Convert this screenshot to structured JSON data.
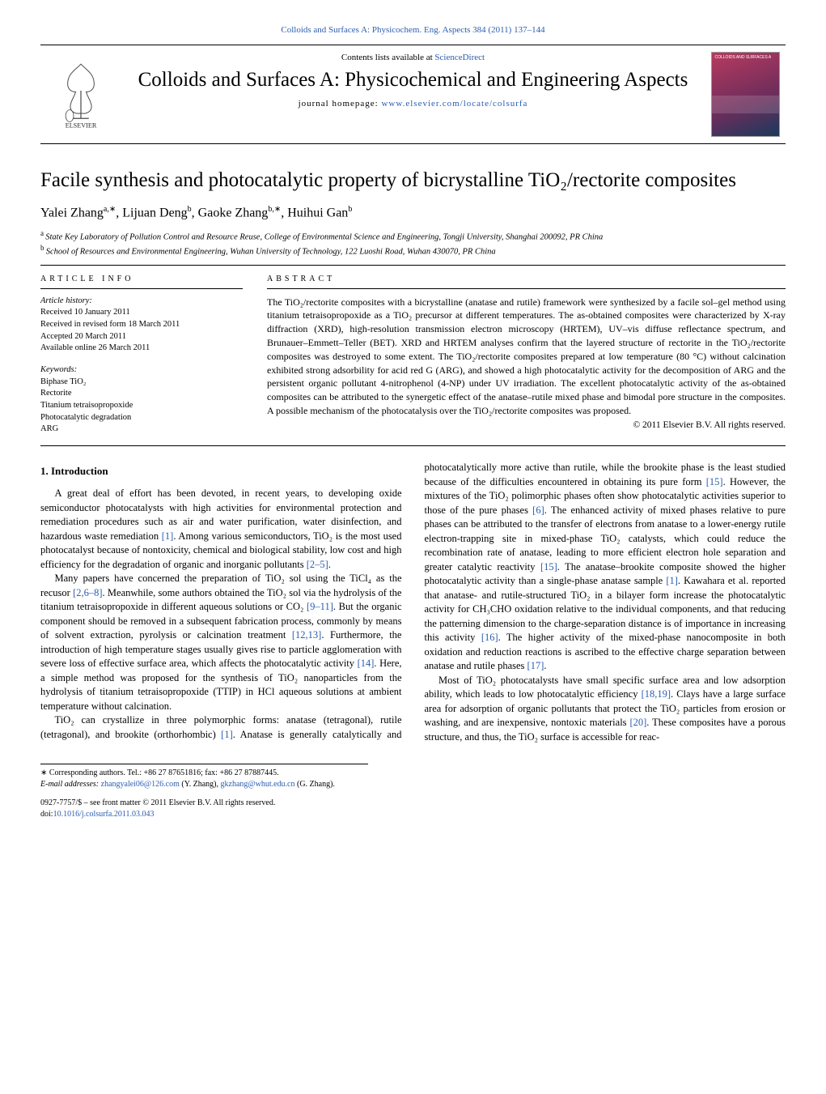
{
  "topCitation": {
    "journalLink": "Colloids and Surfaces A: Physicochem. Eng. Aspects 384 (2011) 137–144",
    "linkColor": "#2a5db0"
  },
  "header": {
    "contentsListsPrefix": "Contents lists available at ",
    "contentsListsLink": "ScienceDirect",
    "journalName": "Colloids and Surfaces A: Physicochemical and Engineering Aspects",
    "homepagePrefix": "journal homepage: ",
    "homepageLink": "www.elsevier.com/locate/colsurfa",
    "publisherLogoAlt": "ELSEVIER",
    "coverLabel": "COLLOIDS AND SURFACES A"
  },
  "article": {
    "title": "Facile synthesis and photocatalytic property of bicrystalline TiO₂/rectorite composites",
    "authorsHtml": "Yalei Zhang",
    "authors": [
      {
        "name": "Yalei Zhang",
        "marks": "a,∗"
      },
      {
        "name": "Lijuan Deng",
        "marks": "b"
      },
      {
        "name": "Gaoke Zhang",
        "marks": "b,∗"
      },
      {
        "name": "Huihui Gan",
        "marks": "b"
      }
    ],
    "affiliations": [
      {
        "mark": "a",
        "text": "State Key Laboratory of Pollution Control and Resource Reuse, College of Environmental Science and Engineering, Tongji University, Shanghai 200092, PR China"
      },
      {
        "mark": "b",
        "text": "School of Resources and Environmental Engineering, Wuhan University of Technology, 122 Luoshi Road, Wuhan 430070, PR China"
      }
    ]
  },
  "articleInfo": {
    "label": "ARTICLE INFO",
    "historyHead": "Article history:",
    "history": [
      "Received 10 January 2011",
      "Received in revised form 18 March 2011",
      "Accepted 20 March 2011",
      "Available online 26 March 2011"
    ],
    "keywordsHead": "Keywords:",
    "keywords": [
      "Biphase TiO₂",
      "Rectorite",
      "Titanium tetraisopropoxide",
      "Photocatalytic degradation",
      "ARG"
    ]
  },
  "abstract": {
    "label": "ABSTRACT",
    "text": "The TiO₂/rectorite composites with a bicrystalline (anatase and rutile) framework were synthesized by a facile sol–gel method using titanium tetraisopropoxide as a TiO₂ precursor at different temperatures. The as-obtained composites were characterized by X-ray diffraction (XRD), high-resolution transmission electron microscopy (HRTEM), UV–vis diffuse reflectance spectrum, and Brunauer–Emmett–Teller (BET). XRD and HRTEM analyses confirm that the layered structure of rectorite in the TiO₂/rectorite composites was destroyed to some extent. The TiO₂/rectorite composites prepared at low temperature (80 °C) without calcination exhibited strong adsorbility for acid red G (ARG), and showed a high photocatalytic activity for the decomposition of ARG and the persistent organic pollutant 4-nitrophenol (4-NP) under UV irradiation. The excellent photocatalytic activity of the as-obtained composites can be attributed to the synergetic effect of the anatase–rutile mixed phase and bimodal pore structure in the composites. A possible mechanism of the photocatalysis over the TiO₂/rectorite composites was proposed.",
    "copyright": "© 2011 Elsevier B.V. All rights reserved."
  },
  "sections": {
    "introHead": "1. Introduction",
    "p1a": "A great deal of effort has been devoted, in recent years, to developing oxide semiconductor photocatalysts with high activities for environmental protection and remediation procedures such as air and water purification, water disinfection, and hazardous waste remediation ",
    "p1ref1": "[1]",
    "p1b": ". Among various semiconductors, TiO₂ is the most used photocatalyst because of nontoxicity, chemical and biological stability, low cost and high efficiency for the degradation of organic and inorganic pollutants ",
    "p1ref2": "[2–5]",
    "p1c": ".",
    "p2a": "Many papers have concerned the preparation of TiO₂ sol using the TiCl₄ as the recusor ",
    "p2ref1": "[2,6–8]",
    "p2b": ". Meanwhile, some authors obtained the TiO₂ sol via the hydrolysis of the titanium tetraisopropoxide in different aqueous solutions or CO₂ ",
    "p2ref2": "[9–11]",
    "p2c": ". But the organic component should be removed in a subsequent fabrication process, commonly by means of solvent extraction, pyrolysis or calcination treatment ",
    "p2ref3": "[12,13]",
    "p2d": ". Furthermore, the introduction of high temperature stages usually gives rise to particle agglomeration with severe loss of effective surface area, which affects the photocatalytic activity ",
    "p2ref4": "[14]",
    "p2e": ". Here, a simple method was proposed for the synthesis of TiO₂ nanoparticles from the hydrolysis of titanium tetraisopropoxide (TTIP) in HCl aqueous solutions at ambient temperature without calcination.",
    "p3a": "TiO₂ can crystallize in three polymorphic forms: anatase (tetragonal), rutile (tetragonal), and brookite (orthorhombic) ",
    "p3ref1": "[1]",
    "p3b": ". Anatase is generally catalytically and photocatalytically more active than rutile, while the brookite phase is the least studied because of the difficulties encountered in obtaining its pure form ",
    "p3ref2": "[15]",
    "p3c": ". However, the mixtures of the TiO₂ polimorphic phases often show photocatalytic activities superior to those of the pure phases ",
    "p3ref3": "[6]",
    "p3d": ". The enhanced activity of mixed phases relative to pure phases can be attributed to the transfer of electrons from anatase to a lower-energy rutile electron-trapping site in mixed-phase TiO₂ catalysts, which could reduce the recombination rate of anatase, leading to more efficient electron hole separation and greater catalytic reactivity ",
    "p3ref4": "[15]",
    "p3e": ". The anatase–brookite composite showed the higher photocatalytic activity than a single-phase anatase sample ",
    "p3ref5": "[1]",
    "p3f": ". Kawahara et al. reported that anatase- and rutile-structured TiO₂ in a bilayer form increase the photocatalytic activity for CH₃CHO oxidation relative to the individual components, and that reducing the patterning dimension to the charge-separation distance is of importance in increasing this activity ",
    "p3ref6": "[16]",
    "p3g": ". The higher activity of the mixed-phase nanocomposite in both oxidation and reduction reactions is ascribed to the effective charge separation between anatase and rutile phases ",
    "p3ref7": "[17]",
    "p3h": ".",
    "p4a": "Most of TiO₂ photocatalysts have small specific surface area and low adsorption ability, which leads to low photocatalytic efficiency ",
    "p4ref1": "[18,19]",
    "p4b": ". Clays have a large surface area for adsorption of organic pollutants that protect the TiO₂ particles from erosion or washing, and are inexpensive, nontoxic materials ",
    "p4ref2": "[20]",
    "p4c": ". These composites have a porous structure, and thus, the TiO₂ surface is accessible for reac-"
  },
  "footnotes": {
    "corrLine": "∗ Corresponding authors. Tel.: +86 27 87651816; fax: +86 27 87887445.",
    "emailLabel": "E-mail addresses: ",
    "email1": "zhangyalei06@126.com",
    "email1who": " (Y. Zhang), ",
    "email2": "gkzhang@whut.edu.cn",
    "email2who": " (G. Zhang)."
  },
  "issn": {
    "line1": "0927-7757/$ – see front matter © 2011 Elsevier B.V. All rights reserved.",
    "doiLabel": "doi:",
    "doi": "10.1016/j.colsurfa.2011.03.043"
  },
  "colors": {
    "link": "#2a5db0",
    "text": "#000000",
    "bg": "#ffffff",
    "coverGradientStart": "#b83a5e",
    "coverGradientMid": "#6b2d5c",
    "coverGradientEnd": "#1a3a5c"
  }
}
